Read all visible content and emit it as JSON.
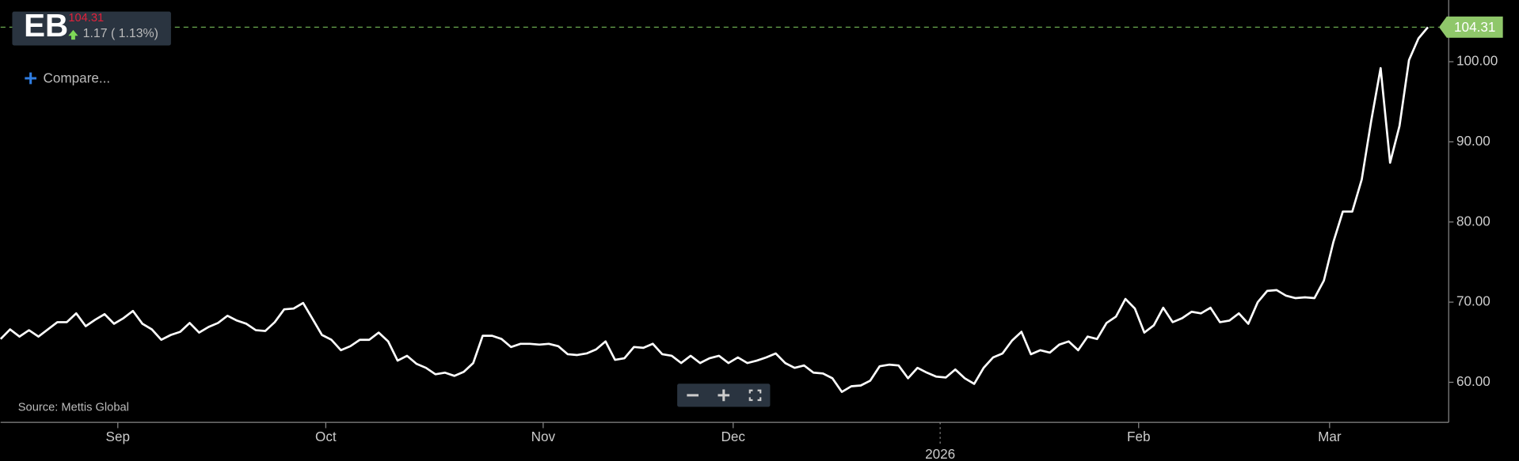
{
  "header": {
    "ticker": "EB",
    "change": "1.17 ( 1.13%)",
    "compare": "Compare...",
    "source": "Source: Mettis Global"
  },
  "chart_data": {
    "type": "line",
    "color": "#ffffff",
    "values": [
      65.4,
      66.6,
      65.7,
      66.5,
      65.7,
      66.6,
      67.5,
      67.5,
      68.6,
      67.0,
      67.8,
      68.5,
      67.3,
      68.0,
      68.9,
      67.3,
      66.6,
      65.3,
      65.9,
      66.3,
      67.4,
      66.2,
      66.9,
      67.4,
      68.3,
      67.7,
      67.3,
      66.5,
      66.4,
      67.5,
      69.1,
      69.2,
      69.9,
      67.9,
      65.9,
      65.3,
      64.0,
      64.5,
      65.3,
      65.3,
      66.2,
      65.1,
      62.7,
      63.3,
      62.3,
      61.8,
      61.0,
      61.2,
      60.8,
      61.3,
      62.4,
      65.8,
      65.8,
      65.4,
      64.4,
      64.8,
      64.8,
      64.7,
      64.8,
      64.5,
      63.5,
      63.4,
      63.6,
      64.1,
      65.1,
      62.8,
      63.0,
      64.4,
      64.3,
      64.8,
      63.5,
      63.3,
      62.4,
      63.3,
      62.4,
      63.0,
      63.3,
      62.4,
      63.1,
      62.4,
      62.7,
      63.1,
      63.6,
      62.4,
      61.8,
      62.1,
      61.2,
      61.1,
      60.5,
      58.8,
      59.5,
      59.6,
      60.2,
      62.0,
      62.2,
      62.1,
      60.5,
      61.8,
      61.2,
      60.7,
      60.6,
      61.6,
      60.5,
      59.8,
      61.8,
      63.1,
      63.6,
      65.2,
      66.3,
      63.5,
      64.0,
      63.7,
      64.7,
      65.1,
      64.0,
      65.7,
      65.4,
      67.4,
      68.2,
      70.4,
      69.2,
      66.2,
      67.1,
      69.3,
      67.5,
      68.0,
      68.8,
      68.6,
      69.3,
      67.5,
      67.7,
      68.6,
      67.3,
      70.0,
      71.4,
      71.5,
      70.8,
      70.5,
      70.6,
      70.5,
      72.7,
      77.5,
      81.3,
      81.3,
      85.3,
      92.6,
      99.2,
      87.4,
      92.0,
      100.2,
      102.9,
      104.31
    ],
    "xlim": [
      0,
      153.2
    ],
    "xticks": [
      {
        "value": 12.4,
        "label": "Sep"
      },
      {
        "value": 34.4,
        "label": "Oct"
      },
      {
        "value": 57.4,
        "label": "Nov"
      },
      {
        "value": 77.5,
        "label": "Dec"
      },
      {
        "value": 99.4,
        "label": "2026"
      },
      {
        "value": 120.4,
        "label": "Feb"
      },
      {
        "value": 140.6,
        "label": "Mar"
      }
    ],
    "ylim": [
      55,
      107.7
    ],
    "yticks": [
      {
        "value": 60,
        "label": "60.00"
      },
      {
        "value": 70,
        "label": "70.00"
      },
      {
        "value": 80,
        "label": "80.00"
      },
      {
        "value": 90,
        "label": "90.00"
      },
      {
        "value": 100,
        "label": "100.00"
      }
    ]
  }
}
